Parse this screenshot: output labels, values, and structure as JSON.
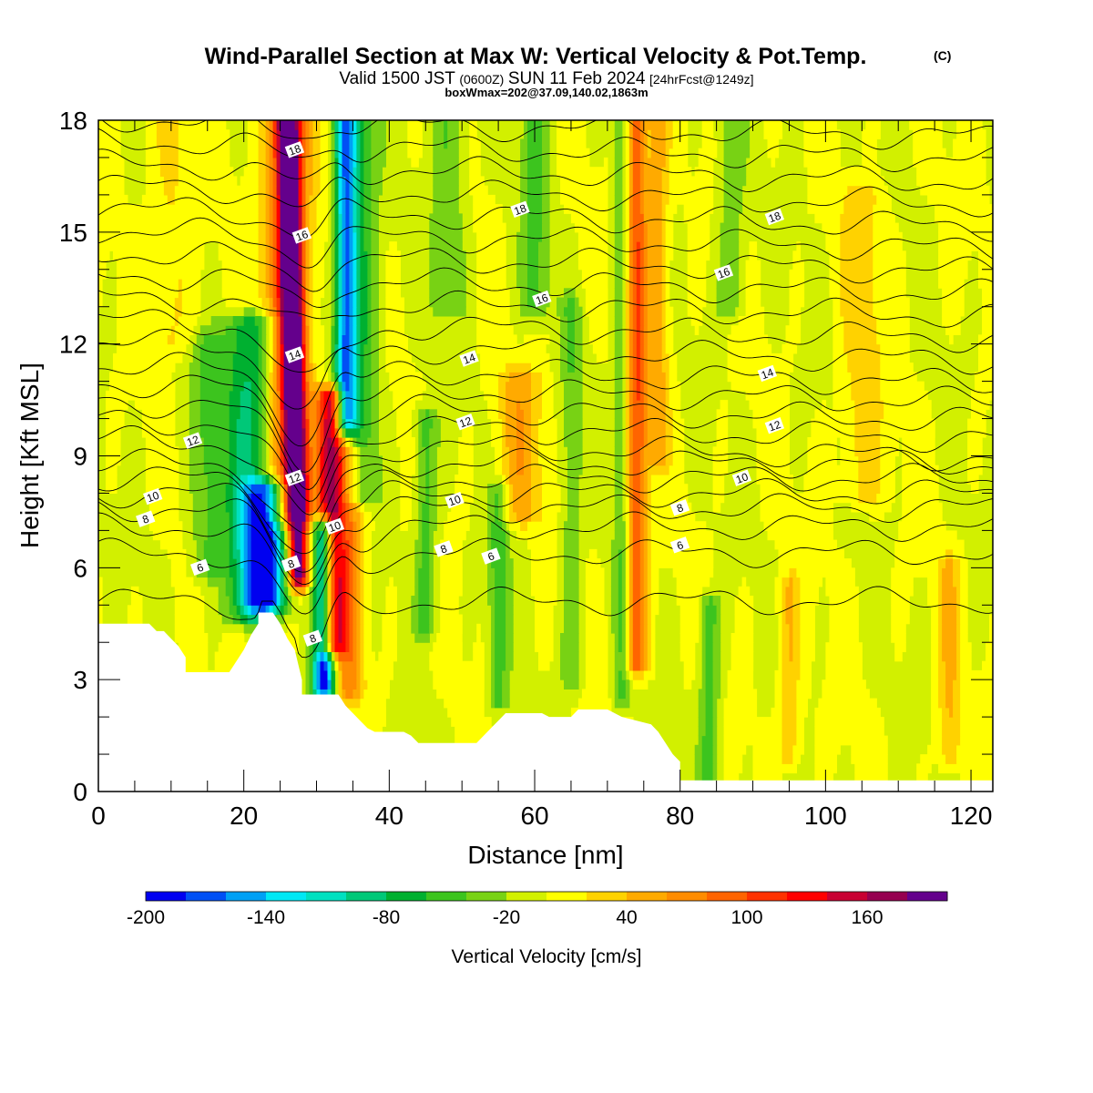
{
  "title": {
    "main": "Wind-Parallel Section at Max W: Vertical Velocity & Pot.Temp.",
    "copyright": "(C)",
    "valid_prefix": "Valid 1500 JST",
    "valid_z": "(0600Z)",
    "valid_date": "SUN 11 Feb 2024",
    "forecast": "[24hrFcst@1249z]",
    "box": "boxWmax=202@37.09,140.02,1863m"
  },
  "chart_data": {
    "type": "heatmap",
    "xlabel": "Distance [nm]",
    "ylabel": "Height [Kft MSL]",
    "xlim": [
      0,
      123
    ],
    "ylim": [
      0,
      18
    ],
    "xticks": [
      0,
      20,
      40,
      60,
      80,
      100,
      120
    ],
    "yticks": [
      0,
      3,
      6,
      9,
      12,
      15,
      18
    ],
    "colorbar": {
      "label": "Vertical Velocity [cm/s]",
      "bounds": [
        -200,
        -180,
        -160,
        -140,
        -120,
        -100,
        -80,
        -60,
        -40,
        -20,
        0,
        20,
        40,
        60,
        80,
        100,
        120,
        140,
        160,
        180,
        200
      ],
      "tick_labels": [
        "-200",
        "-140",
        "-80",
        "-20",
        "40",
        "100",
        "160"
      ],
      "colors": [
        "#0000f0",
        "#0050f5",
        "#00a0f5",
        "#00e8f5",
        "#00e0c0",
        "#00c878",
        "#00b030",
        "#3cc41e",
        "#78d214",
        "#d2f000",
        "#ffff00",
        "#ffd200",
        "#ffaa00",
        "#ff8c00",
        "#ff6400",
        "#ff3200",
        "#ff0000",
        "#c80032",
        "#960050",
        "#64008c"
      ]
    },
    "terrain": [
      [
        0,
        4.5
      ],
      [
        7,
        4.5
      ],
      [
        8,
        4.3
      ],
      [
        9,
        4.3
      ],
      [
        10,
        4.1
      ],
      [
        11,
        3.9
      ],
      [
        12,
        3.6
      ],
      [
        12,
        3.2
      ],
      [
        18,
        3.2
      ],
      [
        19,
        3.5
      ],
      [
        20,
        3.8
      ],
      [
        21,
        4.2
      ],
      [
        22,
        4.5
      ],
      [
        22,
        4.8
      ],
      [
        24,
        4.8
      ],
      [
        25,
        4.5
      ],
      [
        26,
        4.1
      ],
      [
        27,
        3.8
      ],
      [
        28,
        3.0
      ],
      [
        28,
        2.6
      ],
      [
        33,
        2.6
      ],
      [
        34,
        2.3
      ],
      [
        35,
        2.1
      ],
      [
        36,
        1.9
      ],
      [
        37,
        1.7
      ],
      [
        38,
        1.6
      ],
      [
        42,
        1.6
      ],
      [
        43,
        1.5
      ],
      [
        44,
        1.3
      ],
      [
        52,
        1.3
      ],
      [
        53,
        1.5
      ],
      [
        54,
        1.7
      ],
      [
        55,
        1.9
      ],
      [
        56,
        2.1
      ],
      [
        61,
        2.1
      ],
      [
        62,
        2.0
      ],
      [
        65,
        2.0
      ],
      [
        66,
        2.2
      ],
      [
        70,
        2.2
      ],
      [
        72,
        2.0
      ],
      [
        76,
        1.8
      ],
      [
        77,
        1.6
      ],
      [
        78,
        1.3
      ],
      [
        79,
        1.0
      ],
      [
        80,
        0.8
      ],
      [
        80,
        0.3
      ],
      [
        123,
        0.3
      ]
    ],
    "features": [
      {
        "x": 27,
        "ymin": 5.8,
        "ymax": 18,
        "w": 1.4,
        "peak": 200
      },
      {
        "x": 26,
        "ymin": 7.5,
        "ymax": 18,
        "w": 3.2,
        "peak": 100
      },
      {
        "x": 32,
        "ymin": 4.0,
        "ymax": 10.5,
        "w": 1.8,
        "peak": 170
      },
      {
        "x": 34.5,
        "ymin": 2.8,
        "ymax": 9.0,
        "w": 2.0,
        "peak": 70
      },
      {
        "x": 31,
        "ymin": 2.8,
        "ymax": 7.0,
        "w": 1.5,
        "peak": -200
      },
      {
        "x": 23,
        "ymin": 5.2,
        "ymax": 8.0,
        "w": 2.8,
        "peak": -150
      },
      {
        "x": 21,
        "ymin": 4.8,
        "ymax": 12.5,
        "w": 3.5,
        "peak": -90
      },
      {
        "x": 34,
        "ymin": 10.0,
        "ymax": 18,
        "w": 1.5,
        "peak": -140
      },
      {
        "x": 36,
        "ymin": 8.0,
        "ymax": 18,
        "w": 2.5,
        "peak": -60
      },
      {
        "x": 15,
        "ymin": 6.0,
        "ymax": 12.0,
        "w": 2.5,
        "peak": -40
      },
      {
        "x": 45,
        "ymin": 4.5,
        "ymax": 10.0,
        "w": 1.5,
        "peak": -50
      },
      {
        "x": 48,
        "ymin": 13.0,
        "ymax": 18,
        "w": 2.5,
        "peak": -40
      },
      {
        "x": 55,
        "ymin": 2.5,
        "ymax": 8.0,
        "w": 1.5,
        "peak": -50
      },
      {
        "x": 58,
        "ymin": 7.5,
        "ymax": 11.0,
        "w": 3.0,
        "peak": 50
      },
      {
        "x": 60,
        "ymin": 13.0,
        "ymax": 18,
        "w": 2.0,
        "peak": -45
      },
      {
        "x": 65,
        "ymin": 3.0,
        "ymax": 13.0,
        "w": 1.5,
        "peak": -35
      },
      {
        "x": 74,
        "ymin": 3.5,
        "ymax": 18,
        "w": 1.5,
        "peak": 100
      },
      {
        "x": 72,
        "ymin": 2.5,
        "ymax": 18,
        "w": 1.2,
        "peak": -45
      },
      {
        "x": 77,
        "ymin": 9.0,
        "ymax": 18,
        "w": 1.5,
        "peak": 50
      },
      {
        "x": 84,
        "ymin": 0.5,
        "ymax": 5.0,
        "w": 1.5,
        "peak": -50
      },
      {
        "x": 87,
        "ymin": 13.0,
        "ymax": 18,
        "w": 2.0,
        "peak": -35
      },
      {
        "x": 95,
        "ymin": 1.0,
        "ymax": 5.5,
        "w": 1.5,
        "peak": 40
      },
      {
        "x": 105,
        "ymin": 8.0,
        "ymax": 16.0,
        "w": 3.0,
        "peak": 30
      },
      {
        "x": 117,
        "ymin": 1.0,
        "ymax": 6.0,
        "w": 1.5,
        "peak": 40
      },
      {
        "x": 10,
        "ymin": 12.0,
        "ymax": 18,
        "w": 3.0,
        "peak": 25
      }
    ],
    "isentropes": {
      "label_values": [
        "6",
        "8",
        "10",
        "12",
        "14",
        "16",
        "18"
      ],
      "base_levels": [
        5.1,
        6.4,
        7.1,
        7.6,
        8.0,
        8.4,
        8.8,
        9.2,
        9.7,
        10.2,
        10.7,
        11.2,
        11.8,
        12.4,
        13.0,
        13.6,
        14.2,
        14.8,
        15.4,
        16.0,
        16.6,
        17.2,
        17.8
      ],
      "labels": [
        {
          "text": "6",
          "x": 14,
          "y": 6.0
        },
        {
          "text": "8",
          "x": 6.5,
          "y": 7.3
        },
        {
          "text": "10",
          "x": 7.5,
          "y": 7.9
        },
        {
          "text": "12",
          "x": 13,
          "y": 9.4
        },
        {
          "text": "12",
          "x": 27,
          "y": 8.4
        },
        {
          "text": "14",
          "x": 27,
          "y": 11.7
        },
        {
          "text": "16",
          "x": 28,
          "y": 14.9
        },
        {
          "text": "18",
          "x": 27,
          "y": 17.2
        },
        {
          "text": "8",
          "x": 26.5,
          "y": 6.1
        },
        {
          "text": "8",
          "x": 29.5,
          "y": 4.1
        },
        {
          "text": "10",
          "x": 32.5,
          "y": 7.1
        },
        {
          "text": "10",
          "x": 49,
          "y": 7.8
        },
        {
          "text": "12",
          "x": 50.5,
          "y": 9.9
        },
        {
          "text": "14",
          "x": 51,
          "y": 11.6
        },
        {
          "text": "16",
          "x": 61,
          "y": 13.2
        },
        {
          "text": "18",
          "x": 58,
          "y": 15.6
        },
        {
          "text": "8",
          "x": 47.5,
          "y": 6.5
        },
        {
          "text": "6",
          "x": 54,
          "y": 6.3
        },
        {
          "text": "6",
          "x": 80,
          "y": 6.6
        },
        {
          "text": "8",
          "x": 80,
          "y": 7.6
        },
        {
          "text": "10",
          "x": 88.5,
          "y": 8.4
        },
        {
          "text": "12",
          "x": 93,
          "y": 9.8
        },
        {
          "text": "14",
          "x": 92,
          "y": 11.2
        },
        {
          "text": "16",
          "x": 86,
          "y": 13.9
        },
        {
          "text": "18",
          "x": 93,
          "y": 15.4
        }
      ]
    }
  }
}
